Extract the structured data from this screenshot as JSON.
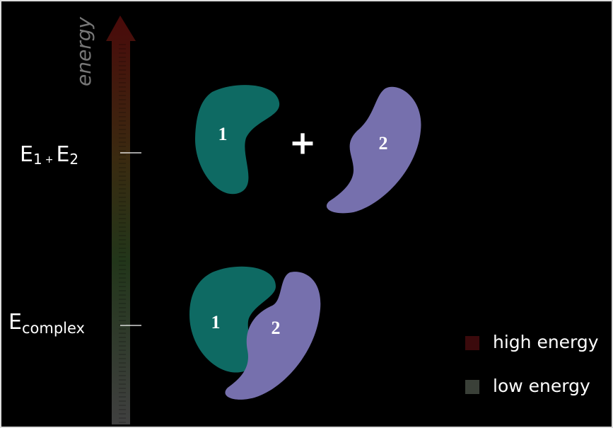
{
  "axis_label": "energy",
  "levels": [
    {
      "parts": [
        "E",
        "1",
        "+",
        "E",
        "2"
      ]
    },
    {
      "parts": [
        "E",
        "complex"
      ]
    }
  ],
  "separate": {
    "protein_1": "1",
    "operator": "+",
    "protein_2": "2"
  },
  "complex": {
    "protein_1": "1",
    "protein_2": "2"
  },
  "legend": [
    {
      "label": "high energy",
      "color": "#3b0a0c"
    },
    {
      "label": "low energy",
      "color": "#3a4038"
    }
  ]
}
